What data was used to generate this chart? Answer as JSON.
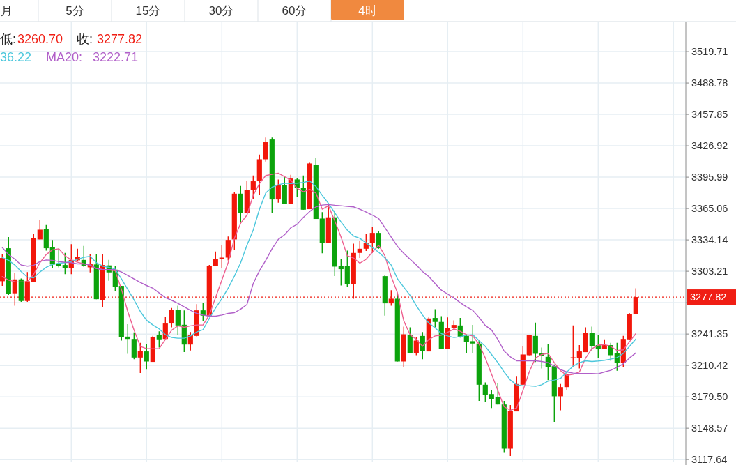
{
  "chart_data": {
    "type": "candlestick",
    "annotations": [
      "月",
      "5分",
      "15分",
      "30分",
      "60分",
      "4时",
      "低:",
      "3260.70",
      "收:",
      "3277.82",
      "36.22",
      "MA20:",
      "3222.71"
    ],
    "categories": [
      null,
      null,
      null,
      null,
      null,
      null,
      null,
      null,
      null,
      null,
      null,
      null,
      null,
      null,
      null,
      null,
      null,
      null,
      null,
      null,
      null,
      null,
      null,
      null,
      null,
      null,
      null,
      null,
      null,
      null,
      null,
      null,
      null,
      null,
      null,
      null,
      null,
      null,
      null,
      null,
      null,
      null,
      null,
      null,
      null,
      null,
      null,
      null,
      null,
      null,
      null,
      null,
      null,
      null,
      null,
      null,
      null,
      null,
      null,
      null,
      null,
      null,
      null,
      null,
      null,
      null,
      null,
      null,
      null,
      null,
      null,
      null,
      null,
      null,
      null,
      null,
      null,
      null,
      null,
      null,
      null,
      null,
      null,
      null,
      null,
      null,
      null,
      null,
      null,
      null,
      null,
      null,
      null,
      null,
      null,
      null,
      null,
      null,
      null,
      null,
      null,
      null
    ],
    "ohlc": [
      [
        3293.4,
        3319.7,
        3288.8,
        3316.3
      ],
      [
        3325.9,
        3336.9,
        3280.0,
        3280.8
      ],
      [
        3281.5,
        3301.4,
        3269.3,
        3295.2
      ],
      [
        3295.2,
        3296.1,
        3273.0,
        3273.9
      ],
      [
        3273.9,
        3302.5,
        3273.0,
        3293.4
      ],
      [
        3292.9,
        3340.3,
        3292.9,
        3335.7
      ],
      [
        3334.6,
        3353.4,
        3334.6,
        3344.2
      ],
      [
        3344.9,
        3348.8,
        3323.6,
        3325.9
      ],
      [
        3327.3,
        3334.1,
        3306.0,
        3309.9
      ],
      [
        3310.3,
        3325.4,
        3307.1,
        3308.2
      ],
      [
        3309.4,
        3321.3,
        3300.3,
        3306.6
      ],
      [
        3306.6,
        3330.0,
        3300.3,
        3314.4
      ],
      [
        3314.0,
        3325.4,
        3312.8,
        3317.4
      ],
      [
        3314.4,
        3328.2,
        3307.6,
        3308.2
      ],
      [
        3307.1,
        3320.4,
        3302.1,
        3310.1
      ],
      [
        3309.9,
        3320.2,
        3275.7,
        3275.7
      ],
      [
        3275.0,
        3320.2,
        3268.2,
        3309.4
      ],
      [
        3309.0,
        3314.4,
        3293.8,
        3302.1
      ],
      [
        3304.8,
        3308.2,
        3283.7,
        3288.1
      ],
      [
        3288.8,
        3288.8,
        3234.9,
        3238.4
      ],
      [
        3238.8,
        3251.0,
        3221.9,
        3236.5
      ],
      [
        3236.5,
        3243.0,
        3216.6,
        3218.2
      ],
      [
        3218.2,
        3232.6,
        3202.9,
        3224.6
      ],
      [
        3224.2,
        3231.5,
        3206.3,
        3214.3
      ],
      [
        3213.9,
        3239.5,
        3213.9,
        3238.4
      ],
      [
        3240.2,
        3244.1,
        3228.1,
        3236.1
      ],
      [
        3236.5,
        3258.5,
        3236.1,
        3251.7
      ],
      [
        3251.7,
        3267.0,
        3248.0,
        3265.4
      ],
      [
        3265.4,
        3269.3,
        3240.7,
        3249.8
      ],
      [
        3250.5,
        3264.7,
        3223.5,
        3231.0
      ],
      [
        3231.0,
        3243.4,
        3225.1,
        3240.7
      ],
      [
        3239.5,
        3270.9,
        3238.8,
        3264.7
      ],
      [
        3264.7,
        3272.3,
        3254.4,
        3259.5
      ],
      [
        3259.0,
        3309.4,
        3258.5,
        3308.2
      ],
      [
        3308.2,
        3322.7,
        3308.2,
        3315.1
      ],
      [
        3315.1,
        3328.9,
        3306.6,
        3316.7
      ],
      [
        3316.7,
        3337.4,
        3314.0,
        3334.1
      ],
      [
        3334.6,
        3381.6,
        3324.3,
        3379.7
      ],
      [
        3379.7,
        3387.3,
        3350.6,
        3361.0
      ],
      [
        3361.0,
        3391.9,
        3360.3,
        3383.2
      ],
      [
        3383.2,
        3397.6,
        3374.0,
        3391.9
      ],
      [
        3391.9,
        3418.2,
        3378.8,
        3413.6
      ],
      [
        3413.6,
        3435.0,
        3411.3,
        3430.4
      ],
      [
        3433.1,
        3435.0,
        3361.0,
        3374.0
      ],
      [
        3374.0,
        3393.7,
        3370.8,
        3387.8
      ],
      [
        3388.4,
        3396.9,
        3369.9,
        3369.9
      ],
      [
        3369.4,
        3398.3,
        3369.4,
        3394.6
      ],
      [
        3393.7,
        3395.3,
        3376.3,
        3385.5
      ],
      [
        3385.5,
        3397.6,
        3363.9,
        3363.9
      ],
      [
        3364.4,
        3410.2,
        3364.4,
        3409.5
      ],
      [
        3408.4,
        3414.8,
        3354.8,
        3354.8
      ],
      [
        3355.2,
        3361.6,
        3320.9,
        3331.2
      ],
      [
        3331.2,
        3369.0,
        3331.2,
        3356.4
      ],
      [
        3356.4,
        3363.2,
        3298.4,
        3307.8
      ],
      [
        3308.2,
        3315.1,
        3289.2,
        3305.3
      ],
      [
        3308.2,
        3323.6,
        3287.6,
        3290.6
      ],
      [
        3290.6,
        3330.5,
        3276.2,
        3321.3
      ],
      [
        3321.3,
        3333.4,
        3316.3,
        3325.4
      ],
      [
        3325.4,
        3340.3,
        3323.2,
        3331.2
      ],
      [
        3331.2,
        3347.2,
        3321.3,
        3341.0
      ],
      [
        3341.0,
        3342.6,
        3325.4,
        3325.9
      ],
      [
        3298.4,
        3299.1,
        3259.4,
        3271.6
      ],
      [
        3271.6,
        3284.6,
        3269.3,
        3276.2
      ],
      [
        3276.2,
        3281.4,
        3214.3,
        3214.3
      ],
      [
        3214.3,
        3248.7,
        3208.6,
        3241.1
      ],
      [
        3240.7,
        3248.0,
        3222.3,
        3222.3
      ],
      [
        3222.3,
        3238.4,
        3220.5,
        3234.9
      ],
      [
        3239.5,
        3243.4,
        3216.6,
        3224.6
      ],
      [
        3224.2,
        3257.8,
        3224.2,
        3256.7
      ],
      [
        3257.2,
        3265.9,
        3248.0,
        3253.3
      ],
      [
        3253.3,
        3259.0,
        3226.9,
        3226.9
      ],
      [
        3226.9,
        3257.8,
        3226.9,
        3247.1
      ],
      [
        3247.1,
        3254.9,
        3246.4,
        3250.3
      ],
      [
        3249.8,
        3257.2,
        3237.9,
        3238.8
      ],
      [
        3239.5,
        3241.1,
        3222.3,
        3233.3
      ],
      [
        3234.3,
        3250.3,
        3222.8,
        3232.0
      ],
      [
        3232.0,
        3234.9,
        3175.4,
        3191.4
      ],
      [
        3191.4,
        3193.7,
        3174.7,
        3181.1
      ],
      [
        3182.2,
        3185.7,
        3168.5,
        3177.0
      ],
      [
        3179.3,
        3192.6,
        3171.9,
        3171.9
      ],
      [
        3171.9,
        3175.4,
        3124.3,
        3128.4
      ],
      [
        3128.4,
        3171.3,
        3121.1,
        3165.5
      ],
      [
        3165.1,
        3199.4,
        3165.1,
        3192.1
      ],
      [
        3191.4,
        3229.2,
        3191.4,
        3221.2
      ],
      [
        3220.5,
        3240.7,
        3220.5,
        3240.2
      ],
      [
        3239.5,
        3252.6,
        3213.8,
        3221.9
      ],
      [
        3222.3,
        3228.1,
        3207.5,
        3219.6
      ],
      [
        3218.9,
        3231.5,
        3196.0,
        3208.6
      ],
      [
        3209.7,
        3211.3,
        3154.8,
        3180.0
      ],
      [
        3180.0,
        3192.1,
        3166.2,
        3189.1
      ],
      [
        3189.1,
        3203.6,
        3185.7,
        3201.7
      ],
      [
        3217.8,
        3249.8,
        3208.6,
        3218.4
      ],
      [
        3217.8,
        3230.4,
        3207.5,
        3224.2
      ],
      [
        3223.5,
        3248.0,
        3223.5,
        3242.5
      ],
      [
        3242.5,
        3248.7,
        3224.2,
        3229.2
      ],
      [
        3230.4,
        3240.2,
        3217.8,
        3226.9
      ],
      [
        3226.5,
        3236.1,
        3226.5,
        3230.4
      ],
      [
        3230.4,
        3232.6,
        3215.0,
        3220.5
      ],
      [
        3222.3,
        3232.6,
        3205.2,
        3213.2
      ],
      [
        3213.2,
        3239.5,
        3208.6,
        3236.5
      ],
      [
        3236.1,
        3261.8,
        3236.1,
        3261.3
      ],
      [
        3261.3,
        3286.5,
        3260.7,
        3277.82
      ]
    ],
    "series": [
      {
        "type": "line",
        "color": "#ee5f8f",
        "values": [
          3298.0,
          3294.5,
          3292.9,
          3292.7,
          3292.9,
          3300.2,
          3311.7,
          3319.7,
          3324.3,
          3325.4,
          3318.5,
          3314.4,
          3312.1,
          3310.5,
          3309.4,
          3306.0,
          3304.8,
          3304.4,
          3303.7,
          3285.3,
          3263.6,
          3245.2,
          3229.2,
          3226.9,
          3226.9,
          3226.9,
          3236.1,
          3245.2,
          3249.4,
          3248.0,
          3249.4,
          3250.3,
          3250.3,
          3260.1,
          3277.3,
          3294.5,
          3311.7,
          3335.7,
          3350.6,
          3358.6,
          3378.1,
          3389.6,
          3397.6,
          3398.7,
          3399.9,
          3396.5,
          3393.0,
          3385.0,
          3381.6,
          3383.9,
          3380.4,
          3364.4,
          3367.8,
          3352.9,
          3336.9,
          3318.5,
          3316.3,
          3311.2,
          3315.1,
          3322.0,
          3328.9,
          3318.5,
          3298.0,
          3281.9,
          3254.4,
          3240.7,
          3236.1,
          3229.2,
          3236.1,
          3239.5,
          3240.2,
          3243.0,
          3246.4,
          3244.1,
          3240.7,
          3239.5,
          3231.5,
          3217.8,
          3201.7,
          3185.7,
          3169.7,
          3166.2,
          3168.5,
          3185.7,
          3204.0,
          3217.8,
          3221.2,
          3222.3,
          3213.2,
          3205.2,
          3200.6,
          3201.7,
          3204.0,
          3217.8,
          3227.0,
          3230.4,
          3231.0,
          3229.2,
          3225.1,
          3225.8,
          3233.8,
          3241.8
        ]
      },
      {
        "type": "line",
        "color": "#4cc7dc",
        "values": [
          3316.7,
          3314.0,
          3309.4,
          3303.0,
          3297.5,
          3296.8,
          3302.5,
          3307.1,
          3309.9,
          3311.2,
          3311.7,
          3312.8,
          3315.1,
          3317.0,
          3317.9,
          3311.7,
          3308.3,
          3307.1,
          3305.3,
          3295.6,
          3285.3,
          3275.0,
          3263.6,
          3254.9,
          3250.3,
          3246.4,
          3240.7,
          3237.9,
          3237.2,
          3237.2,
          3239.5,
          3243.4,
          3245.7,
          3256.7,
          3267.0,
          3276.2,
          3286.5,
          3298.4,
          3311.7,
          3328.9,
          3343.8,
          3364.4,
          3380.4,
          3386.1,
          3388.4,
          3390.0,
          3389.6,
          3390.0,
          3390.7,
          3392.3,
          3386.8,
          3378.1,
          3370.1,
          3361.0,
          3351.8,
          3343.8,
          3338.0,
          3335.7,
          3331.2,
          3326.6,
          3322.0,
          3316.3,
          3309.4,
          3295.7,
          3287.6,
          3279.6,
          3269.3,
          3260.1,
          3252.1,
          3247.5,
          3241.8,
          3239.5,
          3237.9,
          3238.8,
          3240.2,
          3240.7,
          3234.9,
          3229.2,
          3221.2,
          3213.2,
          3204.0,
          3196.0,
          3191.4,
          3190.3,
          3190.3,
          3189.8,
          3191.4,
          3194.9,
          3196.0,
          3197.6,
          3204.0,
          3209.7,
          3213.2,
          3215.0,
          3214.3,
          3214.8,
          3215.5,
          3216.6,
          3218.2,
          3222.3,
          3229.2,
          3236.5
        ]
      },
      {
        "type": "line",
        "color": "#b160c9",
        "values": [
          3326.6,
          3319.7,
          3315.1,
          3309.4,
          3308.3,
          3309.0,
          3312.8,
          3314.4,
          3314.0,
          3312.8,
          3312.1,
          3311.7,
          3310.5,
          3310.5,
          3309.4,
          3306.0,
          3304.8,
          3304.8,
          3304.8,
          3302.5,
          3299.1,
          3295.6,
          3292.2,
          3289.2,
          3286.5,
          3281.9,
          3277.3,
          3274.6,
          3271.6,
          3268.2,
          3264.7,
          3261.7,
          3260.1,
          3259.0,
          3259.0,
          3260.1,
          3261.7,
          3262.4,
          3265.9,
          3270.5,
          3291.1,
          3303.7,
          3314.0,
          3325.4,
          3334.6,
          3339.2,
          3346.1,
          3349.5,
          3356.4,
          3362.1,
          3366.7,
          3368.5,
          3369.0,
          3368.3,
          3367.8,
          3367.1,
          3366.7,
          3364.4,
          3361.6,
          3358.6,
          3355.2,
          3346.1,
          3336.9,
          3327.7,
          3320.9,
          3315.1,
          3309.4,
          3303.0,
          3298.0,
          3291.1,
          3284.6,
          3280.8,
          3276.9,
          3272.3,
          3268.2,
          3264.7,
          3257.8,
          3249.8,
          3245.3,
          3236.1,
          3224.6,
          3218.9,
          3215.0,
          3215.0,
          3215.0,
          3215.0,
          3214.3,
          3213.2,
          3209.7,
          3206.3,
          3204.0,
          3202.9,
          3202.4,
          3202.4,
          3202.4,
          3202.2,
          3204.0,
          3205.6,
          3208.6,
          3212.0,
          3217.8,
          3222.8
        ]
      }
    ],
    "ylim": [
      3115,
      3549.3
    ],
    "yticks": [
      3117.64,
      3148.57,
      {
        "value": 3179.5,
        "label": "3179.50"
      },
      3210.42,
      3241.35,
      {
        "value": 3272.28,
        "label": null
      },
      3303.21,
      3334.14,
      3365.06,
      3395.99,
      3426.92,
      3457.85,
      3488.78,
      3519.71
    ],
    "ref_lines": [
      {
        "axis": "y",
        "value": 3277.82,
        "label": "3277.82",
        "color": "#f01e14",
        "line_style": "dotted"
      }
    ],
    "grid": true
  }
}
